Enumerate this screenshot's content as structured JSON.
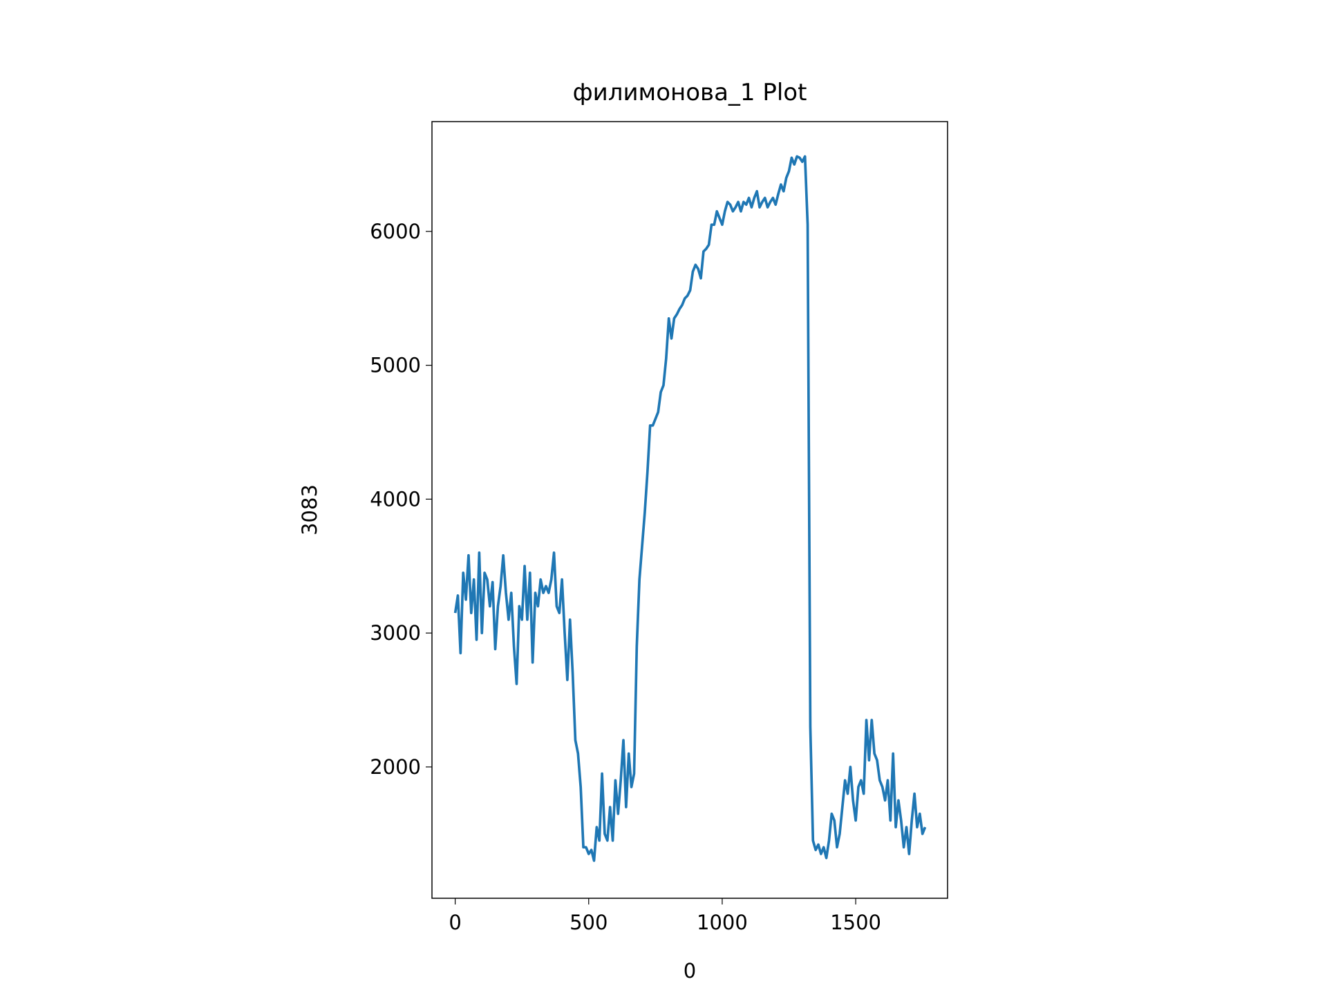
{
  "chart_data": {
    "type": "line",
    "title": "филимонова_1 Plot",
    "xlabel": "0",
    "ylabel": "3083",
    "x": [
      0,
      10,
      20,
      30,
      40,
      50,
      60,
      70,
      80,
      90,
      100,
      110,
      120,
      130,
      140,
      150,
      160,
      170,
      180,
      190,
      200,
      210,
      220,
      230,
      240,
      250,
      260,
      270,
      280,
      290,
      300,
      310,
      320,
      330,
      340,
      350,
      360,
      370,
      380,
      390,
      400,
      410,
      420,
      430,
      440,
      450,
      460,
      470,
      480,
      490,
      500,
      510,
      520,
      530,
      540,
      550,
      560,
      570,
      580,
      590,
      600,
      610,
      620,
      630,
      640,
      650,
      660,
      670,
      680,
      690,
      700,
      710,
      720,
      730,
      740,
      750,
      760,
      770,
      780,
      790,
      800,
      810,
      820,
      830,
      840,
      850,
      860,
      870,
      880,
      890,
      900,
      910,
      920,
      930,
      940,
      950,
      960,
      970,
      980,
      990,
      1000,
      1010,
      1020,
      1030,
      1040,
      1050,
      1060,
      1070,
      1080,
      1090,
      1100,
      1110,
      1120,
      1130,
      1140,
      1150,
      1160,
      1170,
      1180,
      1190,
      1200,
      1210,
      1220,
      1230,
      1240,
      1250,
      1260,
      1270,
      1280,
      1290,
      1300,
      1310,
      1320,
      1330,
      1340,
      1350,
      1360,
      1370,
      1380,
      1390,
      1400,
      1410,
      1420,
      1430,
      1440,
      1450,
      1460,
      1470,
      1480,
      1490,
      1500,
      1510,
      1520,
      1530,
      1540,
      1550,
      1560,
      1570,
      1580,
      1590,
      1600,
      1610,
      1620,
      1630,
      1640,
      1650,
      1660,
      1670,
      1680,
      1690,
      1700,
      1710,
      1720,
      1730,
      1740,
      1750,
      1760
    ],
    "series": [
      {
        "name": "3083",
        "color": "#1f77b4",
        "values": [
          3150,
          3280,
          2850,
          3450,
          3250,
          3580,
          3150,
          3400,
          2950,
          3600,
          3000,
          3450,
          3400,
          3200,
          3380,
          2880,
          3200,
          3350,
          3580,
          3300,
          3100,
          3300,
          2900,
          2620,
          3200,
          3100,
          3500,
          3100,
          3450,
          2780,
          3300,
          3200,
          3400,
          3300,
          3350,
          3300,
          3400,
          3600,
          3200,
          3150,
          3400,
          3000,
          2650,
          3100,
          2700,
          2200,
          2100,
          1850,
          1400,
          1400,
          1350,
          1380,
          1300,
          1550,
          1450,
          1950,
          1500,
          1450,
          1700,
          1450,
          1900,
          1650,
          1900,
          2200,
          1700,
          2100,
          1850,
          1950,
          2900,
          3400,
          3650,
          3900,
          4200,
          4550,
          4550,
          4600,
          4650,
          4800,
          4850,
          5050,
          5350,
          5200,
          5350,
          5380,
          5420,
          5450,
          5500,
          5520,
          5560,
          5700,
          5750,
          5720,
          5650,
          5850,
          5870,
          5900,
          6050,
          6050,
          6150,
          6100,
          6050,
          6150,
          6220,
          6200,
          6150,
          6180,
          6220,
          6150,
          6220,
          6200,
          6250,
          6180,
          6250,
          6300,
          6180,
          6220,
          6250,
          6180,
          6220,
          6250,
          6200,
          6280,
          6350,
          6300,
          6400,
          6450,
          6550,
          6500,
          6560,
          6550,
          6520,
          6560,
          6050,
          2300,
          1450,
          1380,
          1420,
          1350,
          1400,
          1320,
          1450,
          1650,
          1600,
          1400,
          1500,
          1700,
          1900,
          1800,
          2000,
          1750,
          1600,
          1850,
          1900,
          1800,
          2350,
          2050,
          2350,
          2100,
          2050,
          1900,
          1850,
          1750,
          1900,
          1600,
          2100,
          1550,
          1750,
          1600,
          1400,
          1550,
          1350,
          1600,
          1800,
          1550,
          1650,
          1500,
          1550
        ]
      }
    ],
    "xlim": [
      -87,
      1844
    ],
    "xticks": [
      0,
      500,
      1000,
      1500
    ],
    "ylim": [
      1019,
      6820
    ],
    "yticks": [
      2000,
      3000,
      4000,
      5000,
      6000
    ]
  }
}
